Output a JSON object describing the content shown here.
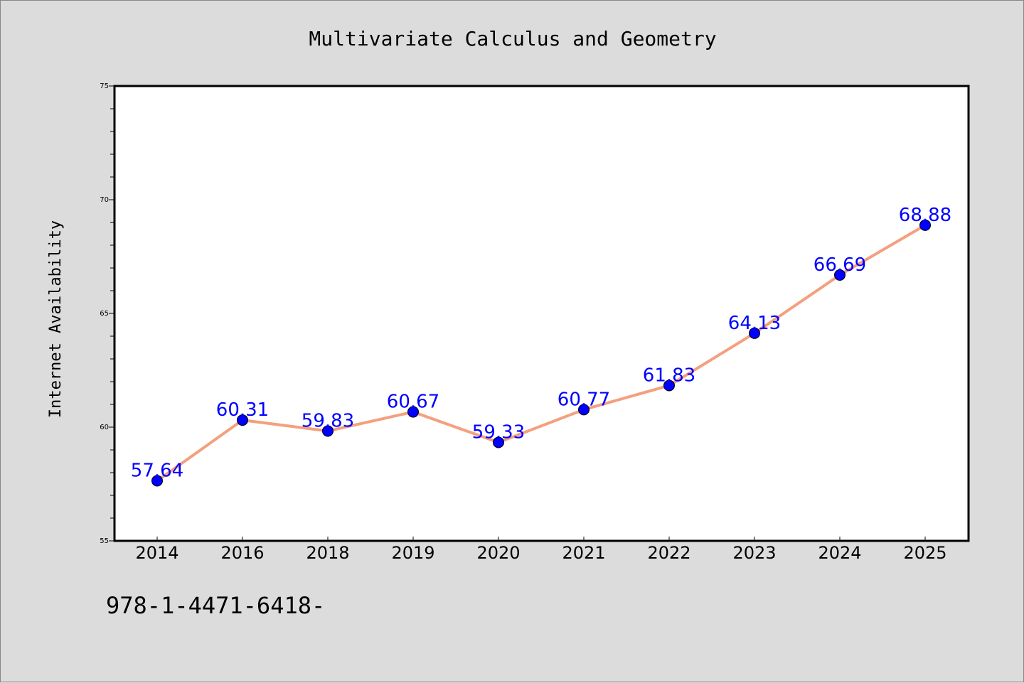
{
  "chart_data": {
    "type": "line",
    "title": "Multivariate Calculus and Geometry",
    "xlabel": "",
    "ylabel": "Internet Availability",
    "categories": [
      "2014",
      "2016",
      "2018",
      "2019",
      "2020",
      "2021",
      "2022",
      "2023",
      "2024",
      "2025"
    ],
    "series": [
      {
        "values": [
          57.64,
          60.31,
          59.83,
          60.67,
          59.33,
          60.77,
          61.83,
          64.13,
          66.69,
          68.88
        ],
        "line_color": "#f4a07e",
        "marker_color": "#0000ff"
      }
    ],
    "data_labels": [
      "57.64",
      "60.31",
      "59.83",
      "60.67",
      "59.33",
      "60.77",
      "61.83",
      "64.13",
      "66.69",
      "68.88"
    ],
    "ylim": [
      55,
      75
    ],
    "yticks": [
      "55",
      "60",
      "65",
      "70",
      "75"
    ],
    "grid": false,
    "legend": "none"
  },
  "footer": {
    "isbn": "978-1-4471-6418-"
  },
  "colors": {
    "background": "#dcdcdc",
    "plot_background": "#ffffff",
    "line": "#f4a07e",
    "marker": "#0000ff",
    "label": "#0000ff"
  }
}
